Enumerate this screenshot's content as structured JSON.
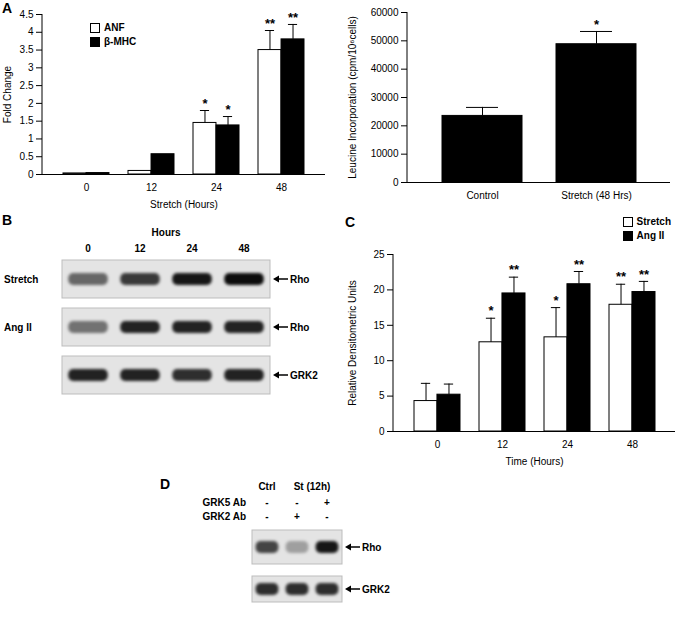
{
  "chart_data": [
    {
      "type": "bar",
      "panel": "A",
      "xlabel": "Stretch (Hours)",
      "ylabel": "Fold Change",
      "categories": [
        "0",
        "12",
        "24",
        "48"
      ],
      "series": [
        {
          "name": "ANF",
          "color": "#ffffff",
          "values": [
            0.03,
            0.1,
            1.45,
            3.5
          ],
          "errors": [
            null,
            null,
            0.35,
            0.55
          ],
          "annotations": [
            null,
            null,
            "*",
            "**"
          ]
        },
        {
          "name": "β-MHC",
          "color": "#000000",
          "values": [
            0.04,
            0.57,
            1.38,
            3.8
          ],
          "errors": [
            null,
            null,
            0.25,
            0.42
          ],
          "annotations": [
            null,
            null,
            "*",
            "**"
          ]
        }
      ],
      "ylim": [
        0,
        4.5
      ],
      "yticks": [
        0,
        0.5,
        1,
        1.5,
        2,
        2.5,
        3,
        3.5,
        4,
        4.5
      ],
      "legend": "top-left"
    },
    {
      "type": "bar",
      "ylabel": "Leucine Incorporation (cpm/10⁶cells)",
      "categories": [
        "Control",
        "Stretch (48 Hrs)"
      ],
      "values": [
        23500,
        48800
      ],
      "errors": [
        3000,
        4500
      ],
      "annotations": [
        null,
        "*"
      ],
      "color": "#000000",
      "ylim": [
        0,
        60000
      ],
      "yticks": [
        0,
        10000,
        20000,
        30000,
        40000,
        50000,
        60000
      ]
    },
    {
      "type": "bar",
      "panel": "C",
      "xlabel": "Time (Hours)",
      "ylabel": "Relative Densitometric Units",
      "categories": [
        "0",
        "12",
        "24",
        "48"
      ],
      "series": [
        {
          "name": "Stretch",
          "color": "#ffffff",
          "values": [
            4.3,
            12.6,
            13.3,
            17.9
          ],
          "errors": [
            2.5,
            3.4,
            4.2,
            2.9
          ],
          "annotations": [
            null,
            "*",
            "*",
            "**"
          ]
        },
        {
          "name": "Ang II",
          "color": "#000000",
          "values": [
            5.2,
            19.5,
            20.8,
            19.7
          ],
          "errors": [
            1.5,
            2.3,
            1.8,
            1.5
          ],
          "annotations": [
            null,
            "**",
            "**",
            "**"
          ]
        }
      ],
      "ylim": [
        0,
        25
      ],
      "yticks": [
        0,
        5,
        10,
        15,
        20,
        25
      ],
      "legend": "top-right"
    }
  ],
  "blots": [
    {
      "panel": "B",
      "header": "Hours",
      "lanes": [
        "0",
        "12",
        "24",
        "48"
      ],
      "rows": [
        {
          "label": "Stretch",
          "band": "Rho",
          "intensity": [
            0.55,
            0.75,
            0.9,
            0.95
          ]
        },
        {
          "label": "Ang II",
          "band": "Rho",
          "intensity": [
            0.5,
            0.85,
            0.85,
            0.85
          ]
        },
        {
          "band": "GRK2",
          "intensity": [
            0.85,
            0.85,
            0.8,
            0.85
          ]
        }
      ]
    },
    {
      "panel": "D",
      "columns": [
        "Ctrl",
        "St (12h)",
        "St (12h)"
      ],
      "conditions": [
        {
          "label": "GRK5 Ab",
          "signs": [
            "-",
            "-",
            "+"
          ]
        },
        {
          "label": "GRK2 Ab",
          "signs": [
            "-",
            "+",
            "-"
          ]
        }
      ],
      "rows": [
        {
          "band": "Rho",
          "intensity": [
            0.7,
            0.3,
            0.9
          ]
        },
        {
          "band": "GRK2",
          "intensity": [
            0.8,
            0.8,
            0.8
          ]
        }
      ]
    }
  ]
}
